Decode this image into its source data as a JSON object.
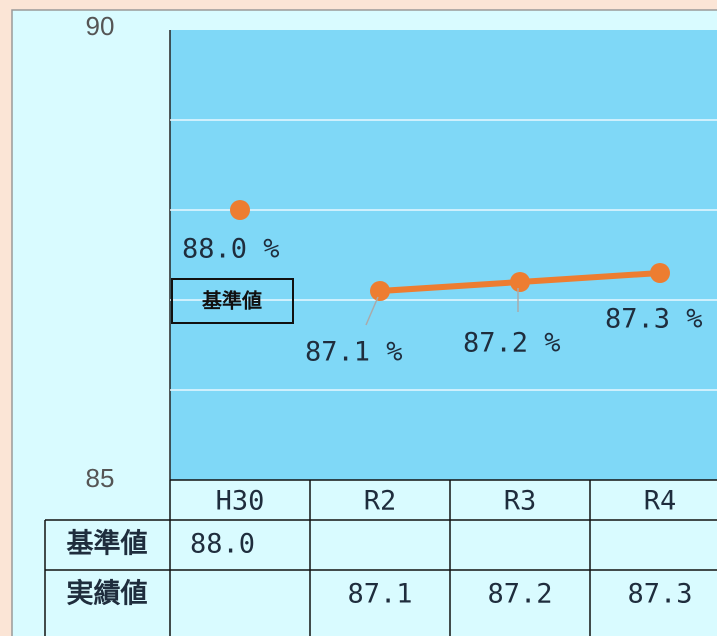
{
  "chart_data": {
    "type": "line",
    "categories": [
      "H30",
      "R2",
      "R3",
      "R4"
    ],
    "series": [
      {
        "name": "基準値",
        "color": "#ed7d31",
        "values": [
          88.0,
          null,
          null,
          null
        ],
        "value_labels": [
          "88.0 %",
          null,
          null,
          null
        ],
        "table_labels": [
          "88.0",
          null,
          null,
          null
        ]
      },
      {
        "name": "実績値",
        "color": "#ed7d31",
        "values": [
          null,
          87.1,
          87.2,
          87.3
        ],
        "value_labels": [
          null,
          "87.1 %",
          "87.2 %",
          "87.3 %"
        ],
        "table_labels": [
          null,
          "87.1",
          "87.2",
          "87.3"
        ]
      }
    ],
    "ylim": [
      85,
      90
    ],
    "yticks": [
      85,
      90
    ],
    "ygrid": [
      86,
      87,
      88,
      89
    ],
    "grid": true
  }
}
